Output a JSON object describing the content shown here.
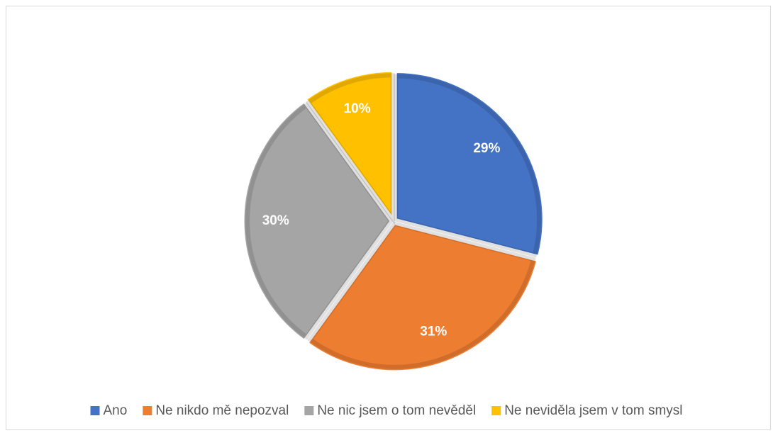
{
  "chart_data": {
    "type": "pie",
    "categories": [
      "Ano",
      "Ne nikdo mě nepozval",
      "Ne nic jsem o tom nevěděl",
      "Ne neviděla jsem v tom smysl"
    ],
    "values": [
      29,
      31,
      30,
      10
    ],
    "value_labels": [
      "29%",
      "31%",
      "30%",
      "10%"
    ],
    "colors": [
      "#4472c4",
      "#ed7d31",
      "#a5a5a5",
      "#ffc000"
    ],
    "legend": "bottom"
  }
}
